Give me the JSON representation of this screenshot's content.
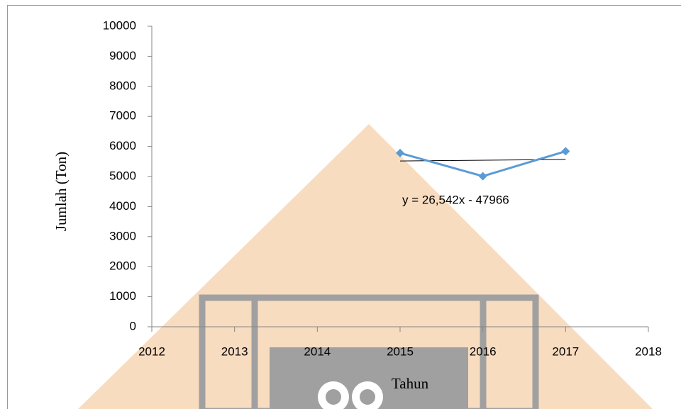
{
  "chart_data": {
    "type": "line",
    "x_label": "Tahun",
    "y_label": "Jumlah (Ton)",
    "x": [
      2015,
      2016,
      2017
    ],
    "series": [
      {
        "color": "#5b9bd5",
        "values": [
          5780,
          5010,
          5840
        ]
      }
    ],
    "trendline": {
      "x": [
        2015,
        2017
      ],
      "values": [
        5516,
        5569
      ],
      "color": "#000000"
    },
    "annotation": "y = 26,542x - 47966",
    "xlim": [
      2012,
      2018
    ],
    "xticks": [
      2012,
      2013,
      2014,
      2015,
      2016,
      2017,
      2018
    ],
    "ylim": [
      0,
      10000
    ],
    "yticks": [
      0,
      1000,
      2000,
      3000,
      4000,
      5000,
      6000,
      7000,
      8000,
      9000,
      10000
    ]
  }
}
